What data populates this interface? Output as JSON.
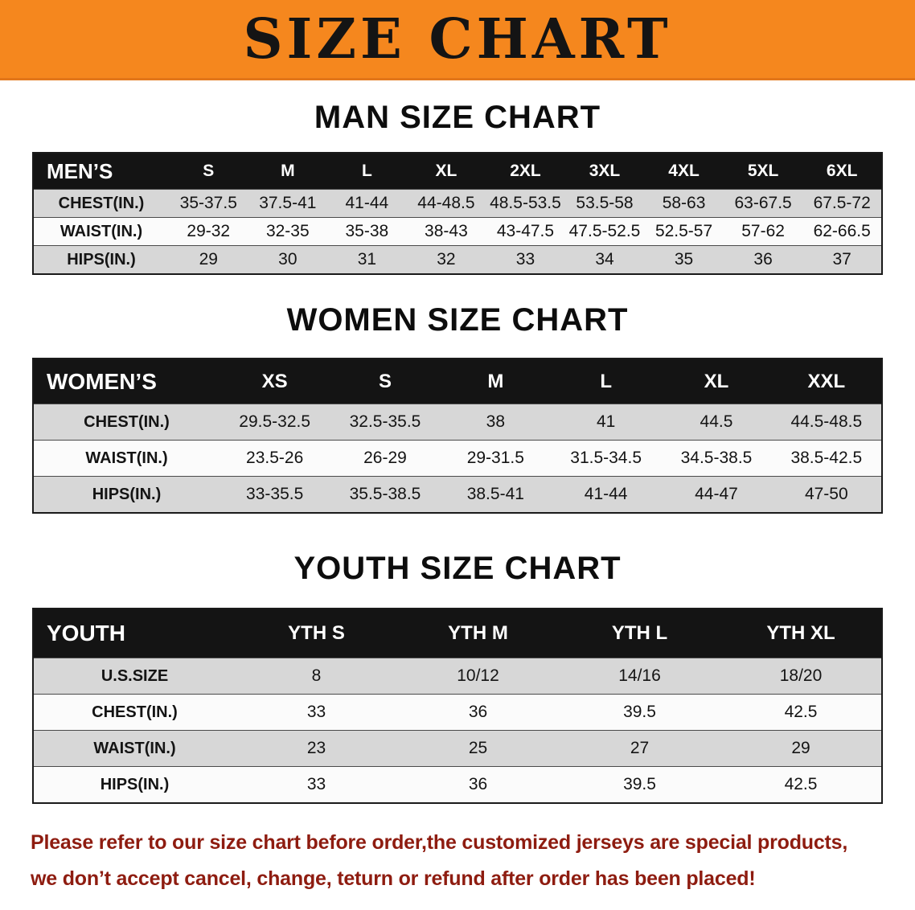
{
  "banner": {
    "title": "SIZE CHART"
  },
  "colors": {
    "banner_orange": "#f5871e",
    "table_header_bg": "#141414",
    "row_shaded": "#d7d7d7",
    "disclaimer_red": "#8e1c10"
  },
  "tables": [
    {
      "title": "MAN SIZE CHART",
      "header": [
        "MEN’S",
        "S",
        "M",
        "L",
        "XL",
        "2XL",
        "3XL",
        "4XL",
        "5XL",
        "6XL"
      ],
      "rows": [
        [
          "CHEST(IN.)",
          "35-37.5",
          "37.5-41",
          "41-44",
          "44-48.5",
          "48.5-53.5",
          "53.5-58",
          "58-63",
          "63-67.5",
          "67.5-72"
        ],
        [
          "WAIST(IN.)",
          "29-32",
          "32-35",
          "35-38",
          "38-43",
          "43-47.5",
          "47.5-52.5",
          "52.5-57",
          "57-62",
          "62-66.5"
        ],
        [
          "HIPS(IN.)",
          "29",
          "30",
          "31",
          "32",
          "33",
          "34",
          "35",
          "36",
          "37"
        ]
      ]
    },
    {
      "title": "WOMEN SIZE CHART",
      "header": [
        "WOMEN’S",
        "XS",
        "S",
        "M",
        "L",
        "XL",
        "XXL"
      ],
      "rows": [
        [
          "CHEST(IN.)",
          "29.5-32.5",
          "32.5-35.5",
          "38",
          "41",
          "44.5",
          "44.5-48.5"
        ],
        [
          "WAIST(IN.)",
          "23.5-26",
          "26-29",
          "29-31.5",
          "31.5-34.5",
          "34.5-38.5",
          "38.5-42.5"
        ],
        [
          "HIPS(IN.)",
          "33-35.5",
          "35.5-38.5",
          "38.5-41",
          "41-44",
          "44-47",
          "47-50"
        ]
      ]
    },
    {
      "title": "YOUTH SIZE CHART",
      "header": [
        "YOUTH",
        "YTH S",
        "YTH M",
        "YTH L",
        "YTH XL"
      ],
      "rows": [
        [
          "U.S.SIZE",
          "8",
          "10/12",
          "14/16",
          "18/20"
        ],
        [
          "CHEST(IN.)",
          "33",
          "36",
          "39.5",
          "42.5"
        ],
        [
          "WAIST(IN.)",
          "23",
          "25",
          "27",
          "29"
        ],
        [
          "HIPS(IN.)",
          "33",
          "36",
          "39.5",
          "42.5"
        ]
      ]
    }
  ],
  "disclaimer": {
    "lines": [
      "Please refer to our size chart before order,the customized jerseys are special products,",
      "we don’t accept cancel, change, teturn or refund after order has been placed!"
    ]
  }
}
